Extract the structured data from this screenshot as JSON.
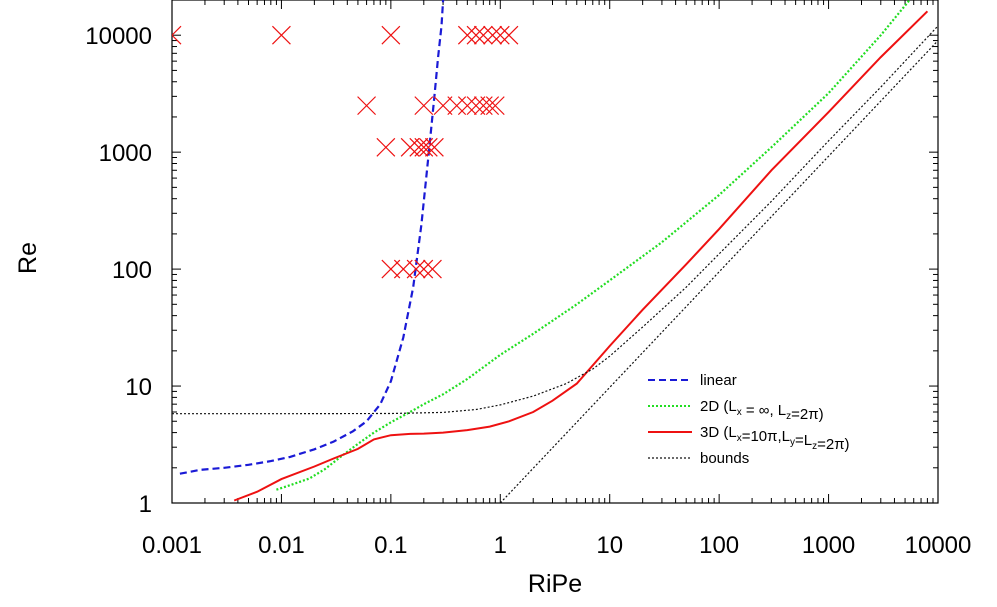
{
  "chart_data": {
    "type": "line",
    "xlabel": "RiPe",
    "ylabel": "Re",
    "x_scale": "log",
    "y_scale": "log",
    "xlim": [
      0.001,
      10000
    ],
    "ylim": [
      1,
      20000
    ],
    "x_ticks": [
      {
        "value": 0.001,
        "label": "0.001"
      },
      {
        "value": 0.01,
        "label": "0.01"
      },
      {
        "value": 0.1,
        "label": "0.1"
      },
      {
        "value": 1,
        "label": "1"
      },
      {
        "value": 10,
        "label": "10"
      },
      {
        "value": 100,
        "label": "100"
      },
      {
        "value": 1000,
        "label": "1000"
      },
      {
        "value": 10000,
        "label": "10000"
      }
    ],
    "y_ticks": [
      {
        "value": 1,
        "label": "1"
      },
      {
        "value": 10,
        "label": "10"
      },
      {
        "value": 100,
        "label": "100"
      },
      {
        "value": 1000,
        "label": "1000"
      },
      {
        "value": 10000,
        "label": "10000"
      }
    ],
    "grid": false,
    "legend_position": "bottom-right",
    "series": [
      {
        "name": "linear",
        "color": "#1a1ad6",
        "style": "dashed",
        "x": [
          0.00118,
          0.0018,
          0.003,
          0.005,
          0.008,
          0.012,
          0.02,
          0.03,
          0.045,
          0.06,
          0.08,
          0.1,
          0.13,
          0.16,
          0.19,
          0.22,
          0.25,
          0.27,
          0.29,
          0.3
        ],
        "y": [
          1.78,
          1.92,
          2.0,
          2.12,
          2.28,
          2.48,
          2.88,
          3.35,
          4.1,
          5.0,
          7.0,
          11.0,
          26,
          70,
          240,
          900,
          3000,
          6500,
          12000,
          20000
        ]
      },
      {
        "name": "2D (Lx = ∞, Lz=2π)",
        "label_parts": [
          {
            "text": "2D (L"
          },
          {
            "text": "x",
            "sub": true
          },
          {
            "text": " = ∞, L"
          },
          {
            "text": "z",
            "sub": true
          },
          {
            "text": "=2π)"
          }
        ],
        "color": "#22dd22",
        "style": "dotted",
        "x": [
          0.009,
          0.012,
          0.018,
          0.025,
          0.035,
          0.05,
          0.07,
          0.1,
          0.15,
          0.2,
          0.3,
          0.5,
          1,
          2,
          5,
          10,
          30,
          100,
          300,
          1000,
          3000,
          5500
        ],
        "y": [
          1.3,
          1.42,
          1.62,
          1.95,
          2.5,
          3.2,
          4.0,
          4.9,
          6.0,
          7.0,
          8.5,
          11.5,
          18.5,
          28,
          50,
          80,
          170,
          430,
          1100,
          3200,
          10000,
          20000
        ]
      },
      {
        "name": "3D (Lx=10π,Ly=Lz=2π)",
        "label_parts": [
          {
            "text": "3D (L"
          },
          {
            "text": "x",
            "sub": true
          },
          {
            "text": "=10π,L"
          },
          {
            "text": "y",
            "sub": true
          },
          {
            "text": "=L"
          },
          {
            "text": "z",
            "sub": true
          },
          {
            "text": "=2π)"
          }
        ],
        "color": "#ee1111",
        "style": "solid",
        "x": [
          0.0037,
          0.006,
          0.01,
          0.02,
          0.03,
          0.05,
          0.07,
          0.1,
          0.15,
          0.2,
          0.3,
          0.5,
          0.8,
          1.2,
          2,
          3,
          5,
          10,
          20,
          50,
          100,
          300,
          1000,
          3000,
          8000
        ],
        "y": [
          1.05,
          1.25,
          1.6,
          2.05,
          2.4,
          2.9,
          3.5,
          3.8,
          3.9,
          3.92,
          4.0,
          4.2,
          4.5,
          5.0,
          6.0,
          7.5,
          10.5,
          22,
          45,
          110,
          220,
          700,
          2200,
          6500,
          16000
        ]
      },
      {
        "name": "bounds",
        "color": "#111111",
        "style": "dotted",
        "segments": [
          {
            "x": [
              0.001,
              0.01,
              0.1,
              0.3,
              0.6,
              1,
              2,
              4,
              7,
              10,
              20,
              50,
              100,
              300,
              1000,
              3000,
              10000
            ],
            "y": [
              5.8,
              5.8,
              5.82,
              5.95,
              6.3,
              6.9,
              8.2,
              10.5,
              14,
              18,
              32,
              70,
              135,
              380,
              1250,
              3600,
              12000
            ]
          },
          {
            "x": [
              1,
              10000
            ],
            "y": [
              1,
              9000
            ]
          }
        ]
      }
    ],
    "markers": {
      "symbol": "x",
      "color": "#ee1111",
      "points": [
        {
          "x": 0.001,
          "y": 10000
        },
        {
          "x": 0.01,
          "y": 10000
        },
        {
          "x": 0.1,
          "y": 10000
        },
        {
          "x": 0.5,
          "y": 10000
        },
        {
          "x": 0.6,
          "y": 10000
        },
        {
          "x": 0.7,
          "y": 10000
        },
        {
          "x": 0.85,
          "y": 10000
        },
        {
          "x": 1.0,
          "y": 10000
        },
        {
          "x": 1.2,
          "y": 10000
        },
        {
          "x": 0.06,
          "y": 2500
        },
        {
          "x": 0.2,
          "y": 2500
        },
        {
          "x": 0.3,
          "y": 2500
        },
        {
          "x": 0.4,
          "y": 2500
        },
        {
          "x": 0.5,
          "y": 2500
        },
        {
          "x": 0.6,
          "y": 2500
        },
        {
          "x": 0.7,
          "y": 2500
        },
        {
          "x": 0.8,
          "y": 2500
        },
        {
          "x": 0.9,
          "y": 2500
        },
        {
          "x": 0.09,
          "y": 1100
        },
        {
          "x": 0.15,
          "y": 1100
        },
        {
          "x": 0.18,
          "y": 1100
        },
        {
          "x": 0.2,
          "y": 1100
        },
        {
          "x": 0.22,
          "y": 1100
        },
        {
          "x": 0.25,
          "y": 1100
        },
        {
          "x": 0.1,
          "y": 100
        },
        {
          "x": 0.13,
          "y": 100
        },
        {
          "x": 0.17,
          "y": 100
        },
        {
          "x": 0.2,
          "y": 100
        },
        {
          "x": 0.24,
          "y": 100
        }
      ]
    }
  }
}
